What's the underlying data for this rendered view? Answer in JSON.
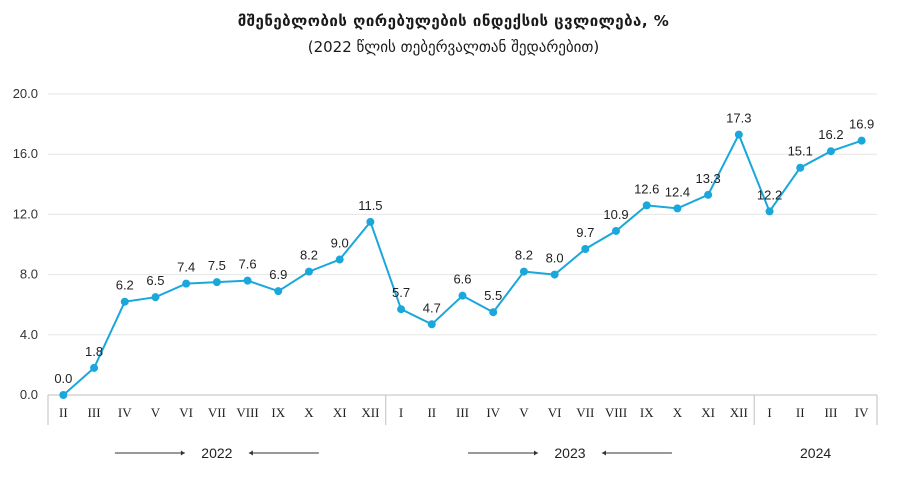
{
  "chart_data": {
    "type": "line",
    "title": "მშენებლობის ღირებულების ინდექსის ცვლილება, %",
    "subtitle": "(2022 წლის თებერვალთან შედარებით)",
    "ylim": [
      0,
      20
    ],
    "yticks": [
      "0.0",
      "4.0",
      "8.0",
      "12.0",
      "16.0",
      "20.0"
    ],
    "grid": true,
    "color": "#1aa7dc",
    "categories": [
      "II",
      "III",
      "IV",
      "V",
      "VI",
      "VII",
      "VIII",
      "IX",
      "X",
      "XI",
      "XII",
      "I",
      "II",
      "III",
      "IV",
      "V",
      "VI",
      "VII",
      "VIII",
      "IX",
      "X",
      "XI",
      "XII",
      "I",
      "II",
      "III",
      "IV"
    ],
    "values": [
      0.0,
      1.8,
      6.2,
      6.5,
      7.4,
      7.5,
      7.6,
      6.9,
      8.2,
      9.0,
      11.5,
      5.7,
      4.7,
      6.6,
      5.5,
      8.2,
      8.0,
      9.7,
      10.9,
      12.6,
      12.4,
      13.3,
      17.3,
      12.2,
      15.1,
      16.2,
      16.9
    ],
    "value_labels": [
      "0.0",
      "1.8",
      "6.2",
      "6.5",
      "7.4",
      "7.5",
      "7.6",
      "6.9",
      "8.2",
      "9.0",
      "11.5",
      "5.7",
      "4.7",
      "6.6",
      "5.5",
      "8.2",
      "8.0",
      "9.7",
      "10.9",
      "12.6",
      "12.4",
      "13.3",
      "17.3",
      "12.2",
      "15.1",
      "16.2",
      "16.9"
    ],
    "years": [
      {
        "label": "2022",
        "start": 0,
        "end": 10
      },
      {
        "label": "2023",
        "start": 11,
        "end": 22
      },
      {
        "label": "2024",
        "start": 23,
        "end": 26
      }
    ]
  }
}
